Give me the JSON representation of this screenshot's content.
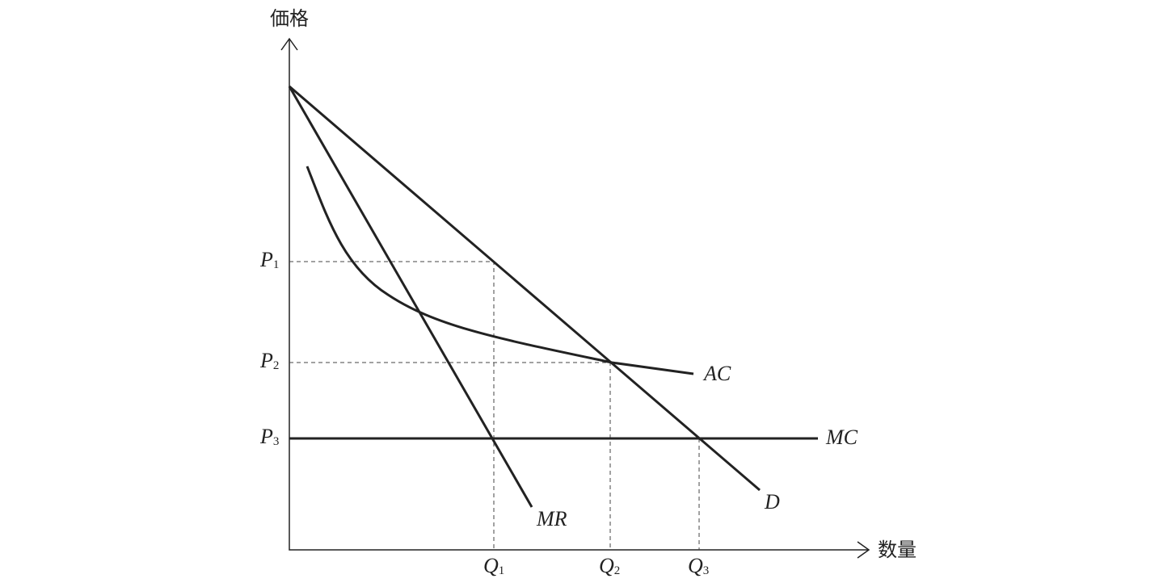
{
  "axes": {
    "y_label": "価格",
    "x_label": "数量"
  },
  "curves": [
    {
      "label": "D"
    },
    {
      "label": "MR"
    },
    {
      "label": "AC"
    },
    {
      "label": "MC"
    }
  ],
  "price_levels": [
    {
      "letter": "P",
      "sub": "1"
    },
    {
      "letter": "P",
      "sub": "2"
    },
    {
      "letter": "P",
      "sub": "3"
    }
  ],
  "quantity_levels": [
    {
      "letter": "Q",
      "sub": "1"
    },
    {
      "letter": "Q",
      "sub": "2"
    },
    {
      "letter": "Q",
      "sub": "3"
    }
  ]
}
